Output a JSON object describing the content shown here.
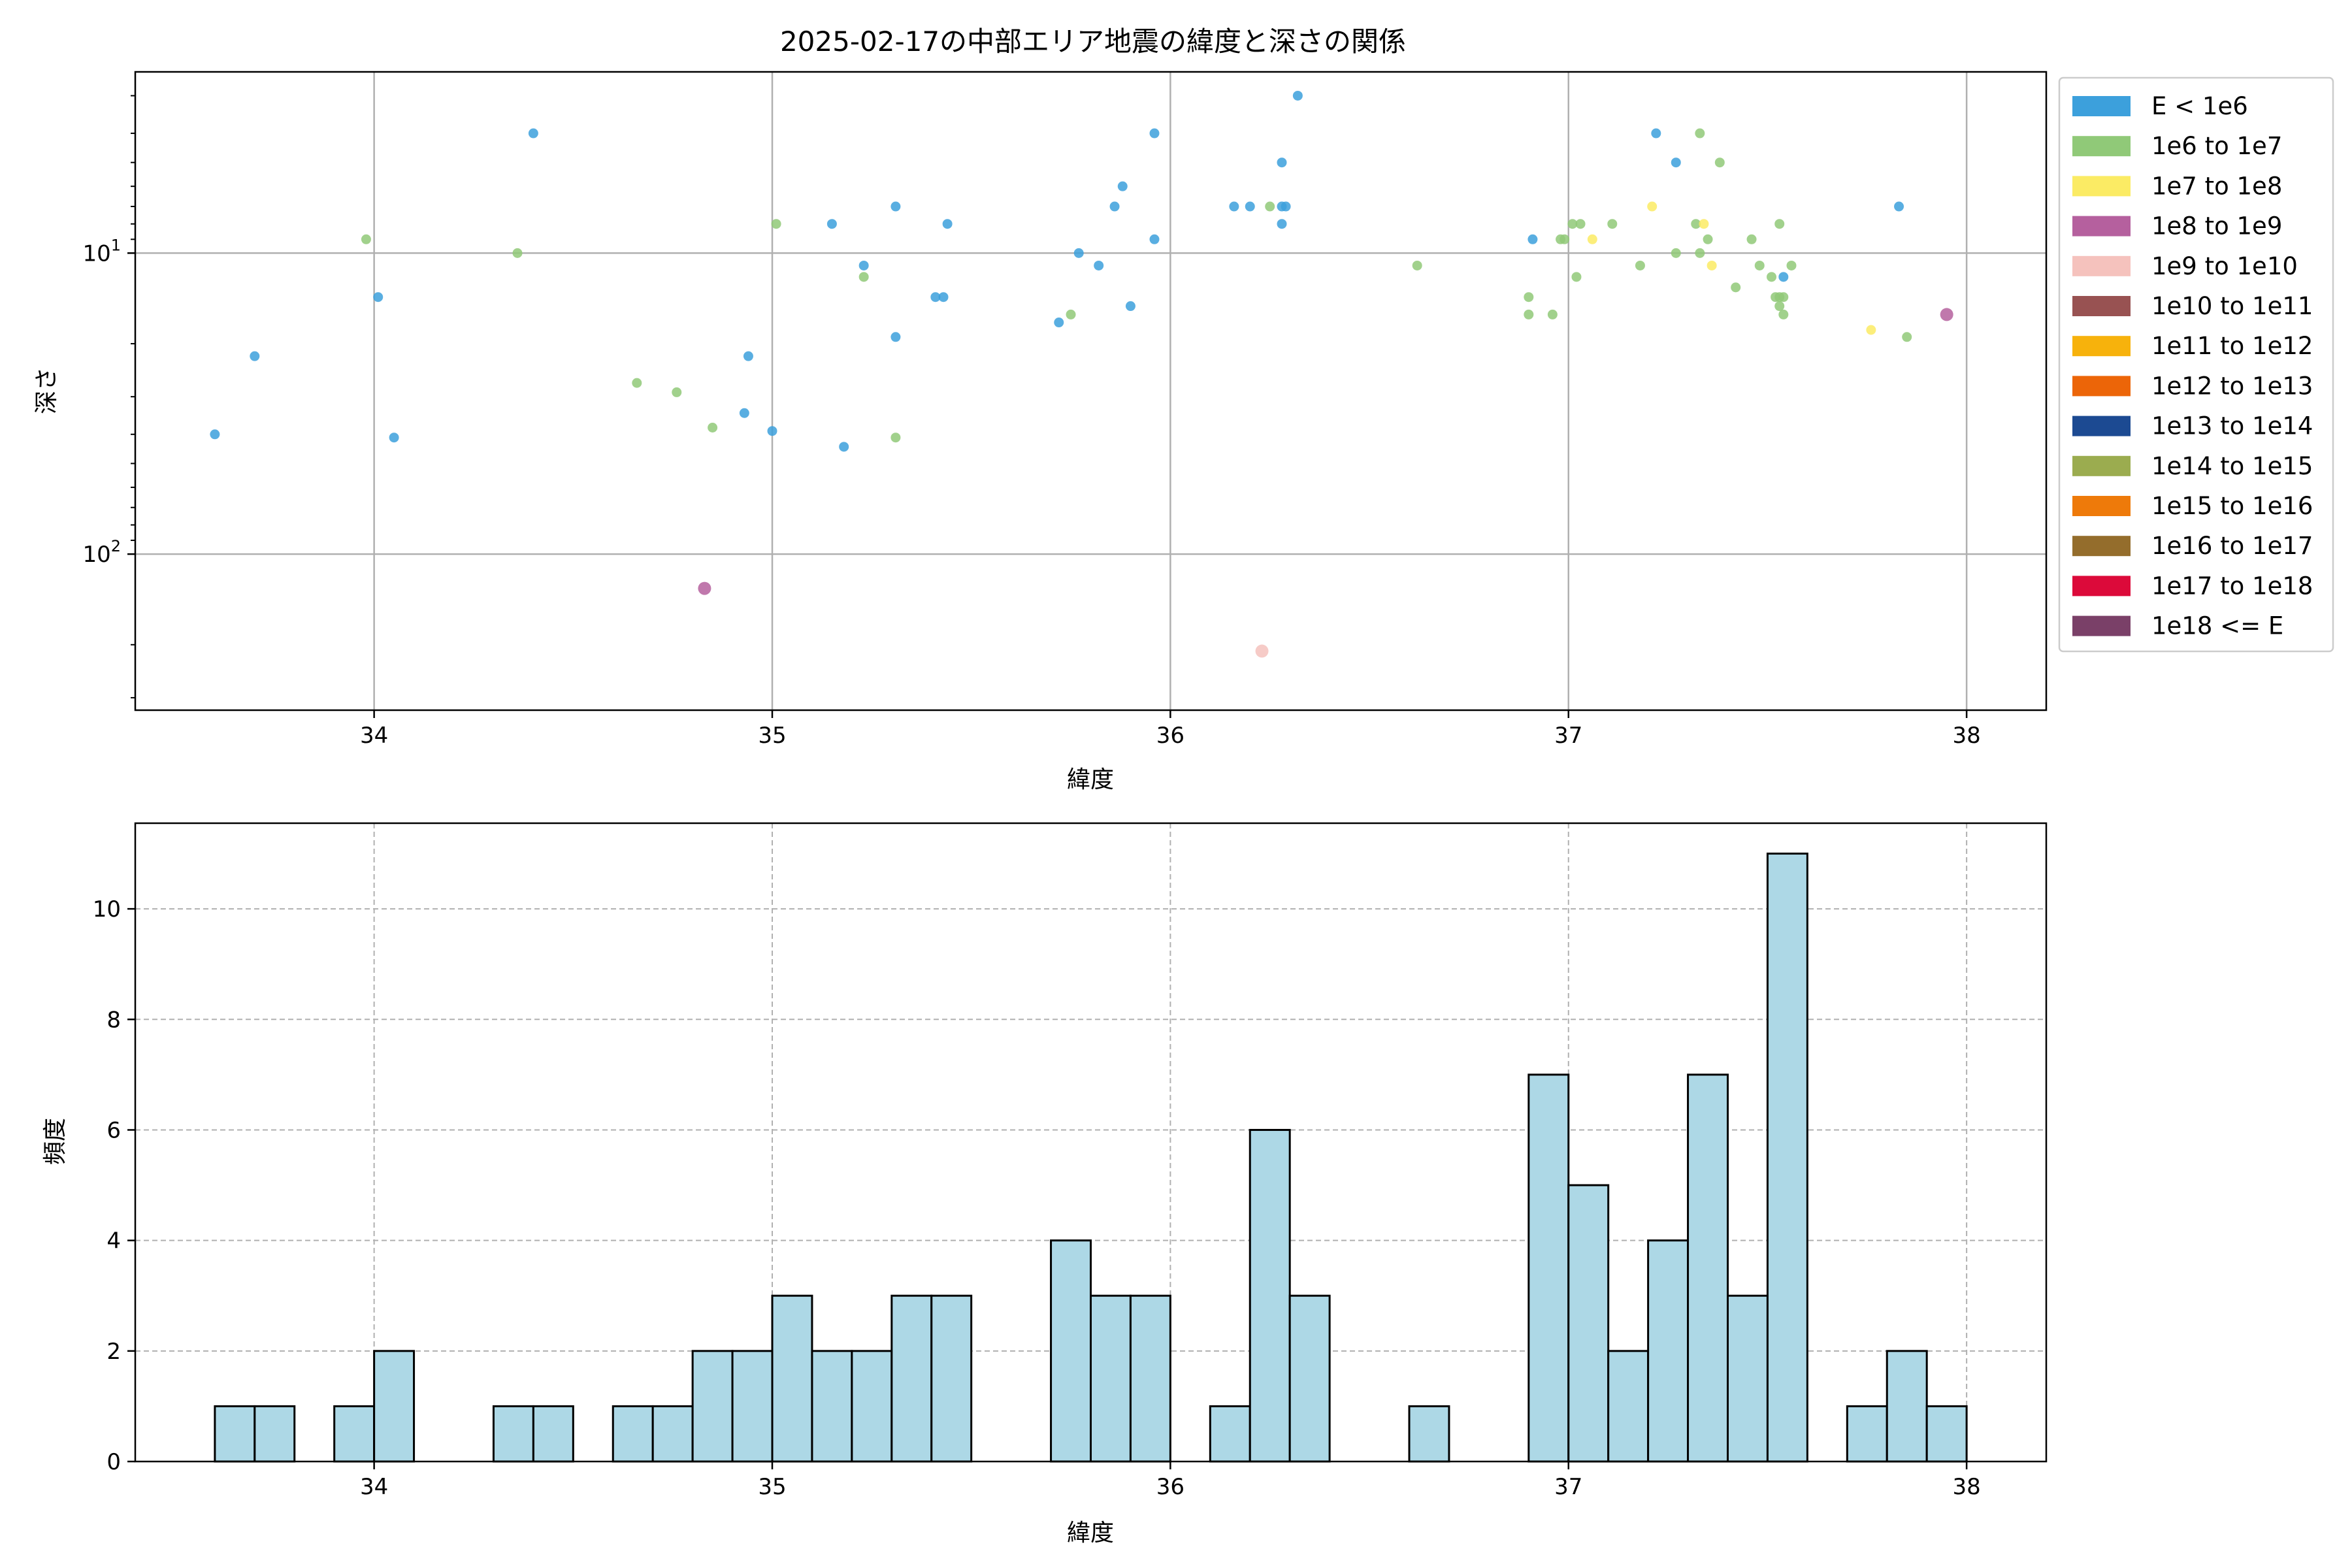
{
  "chart_data": [
    {
      "type": "scatter",
      "title": "2025-02-17の中部エリア地震の緯度と深さの関係",
      "xlabel": "緯度",
      "ylabel": "深さ",
      "xlim": [
        33.4,
        38.2
      ],
      "ylim": [
        330,
        2.5
      ],
      "y_scale": "log",
      "y_inverted": true,
      "xticks": [
        34,
        35,
        36,
        37,
        38
      ],
      "yticks": [
        {
          "value": 10,
          "base": "10",
          "exp": "1"
        },
        {
          "value": 100,
          "base": "10",
          "exp": "2"
        }
      ],
      "grid": true,
      "legend_position": "outside-right",
      "legend": [
        {
          "label": "E < 1e6",
          "color": "#3ca0dc"
        },
        {
          "label": "1e6 to 1e7",
          "color": "#90c978"
        },
        {
          "label": "1e7 to 1e8",
          "color": "#fbeb64"
        },
        {
          "label": "1e8 to 1e9",
          "color": "#b5609e"
        },
        {
          "label": "1e9 to 1e10",
          "color": "#f5c2bd"
        },
        {
          "label": "1e10 to 1e11",
          "color": "#985252"
        },
        {
          "label": "1e11 to 1e12",
          "color": "#f7b20c"
        },
        {
          "label": "1e12 to 1e13",
          "color": "#ec6508"
        },
        {
          "label": "1e13 to 1e14",
          "color": "#1c4a92"
        },
        {
          "label": "1e14 to 1e15",
          "color": "#9bac4f"
        },
        {
          "label": "1e15 to 1e16",
          "color": "#ee7a0a"
        },
        {
          "label": "1e16 to 1e17",
          "color": "#946d2c"
        },
        {
          "label": "1e17 to 1e18",
          "color": "#dc0a3a"
        },
        {
          "label": "1e18 <= E",
          "color": "#7a4068"
        }
      ],
      "series": [
        {
          "name": "E < 1e6",
          "points": [
            [
              33.6,
              40
            ],
            [
              33.7,
              22
            ],
            [
              34.01,
              14
            ],
            [
              34.05,
              41
            ],
            [
              34.4,
              4
            ],
            [
              34.94,
              22
            ],
            [
              34.93,
              34
            ],
            [
              35.0,
              39
            ],
            [
              35.15,
              8
            ],
            [
              35.18,
              44
            ],
            [
              35.23,
              11
            ],
            [
              35.31,
              7
            ],
            [
              35.31,
              19
            ],
            [
              35.41,
              14
            ],
            [
              35.43,
              14
            ],
            [
              35.44,
              8
            ],
            [
              35.72,
              17
            ],
            [
              35.77,
              10
            ],
            [
              35.82,
              11
            ],
            [
              35.86,
              7
            ],
            [
              35.88,
              6
            ],
            [
              35.9,
              15
            ],
            [
              35.96,
              4
            ],
            [
              35.96,
              9
            ],
            [
              36.16,
              7
            ],
            [
              36.2,
              7
            ],
            [
              36.28,
              5
            ],
            [
              36.28,
              7
            ],
            [
              36.28,
              8
            ],
            [
              36.29,
              7
            ],
            [
              36.32,
              3
            ],
            [
              36.91,
              9
            ],
            [
              37.22,
              4
            ],
            [
              37.27,
              5
            ],
            [
              37.54,
              12
            ],
            [
              37.83,
              7
            ]
          ]
        },
        {
          "name": "1e6 to 1e7",
          "points": [
            [
              33.98,
              9
            ],
            [
              34.36,
              10
            ],
            [
              34.66,
              27
            ],
            [
              34.76,
              29
            ],
            [
              34.85,
              38
            ],
            [
              35.01,
              8
            ],
            [
              35.23,
              12
            ],
            [
              35.31,
              41
            ],
            [
              35.75,
              16
            ],
            [
              36.25,
              7
            ],
            [
              36.62,
              11
            ],
            [
              36.9,
              14
            ],
            [
              36.9,
              16
            ],
            [
              36.96,
              16
            ],
            [
              36.98,
              9
            ],
            [
              36.99,
              9
            ],
            [
              37.01,
              8
            ],
            [
              37.02,
              12
            ],
            [
              37.03,
              8
            ],
            [
              37.11,
              8
            ],
            [
              37.18,
              11
            ],
            [
              37.27,
              10
            ],
            [
              37.32,
              8
            ],
            [
              37.33,
              4
            ],
            [
              37.33,
              10
            ],
            [
              37.35,
              9
            ],
            [
              37.38,
              5
            ],
            [
              37.42,
              13
            ],
            [
              37.46,
              9
            ],
            [
              37.48,
              11
            ],
            [
              37.51,
              12
            ],
            [
              37.52,
              14
            ],
            [
              37.53,
              14
            ],
            [
              37.53,
              8
            ],
            [
              37.53,
              15
            ],
            [
              37.54,
              14
            ],
            [
              37.54,
              16
            ],
            [
              37.56,
              11
            ],
            [
              37.85,
              19
            ]
          ]
        },
        {
          "name": "1e7 to 1e8",
          "points": [
            [
              37.06,
              9
            ],
            [
              37.21,
              7
            ],
            [
              37.34,
              8
            ],
            [
              37.36,
              11
            ],
            [
              37.76,
              18
            ]
          ]
        },
        {
          "name": "1e8 to 1e9",
          "points": [
            [
              34.83,
              130
            ],
            [
              37.95,
              16
            ]
          ]
        },
        {
          "name": "1e9 to 1e10",
          "points": [
            [
              36.23,
              210
            ]
          ]
        }
      ]
    },
    {
      "type": "bar",
      "subtype": "histogram",
      "xlabel": "緯度",
      "ylabel": "頻度",
      "xlim": [
        33.4,
        38.2
      ],
      "ylim": [
        0,
        11.55
      ],
      "xticks": [
        34,
        35,
        36,
        37,
        38
      ],
      "yticks": [
        0,
        2,
        4,
        6,
        8,
        10
      ],
      "grid": true,
      "bin_width": 0.1,
      "bins": [
        {
          "start": 33.6,
          "count": 1
        },
        {
          "start": 33.7,
          "count": 1
        },
        {
          "start": 33.9,
          "count": 1
        },
        {
          "start": 34.0,
          "count": 2
        },
        {
          "start": 34.3,
          "count": 1
        },
        {
          "start": 34.4,
          "count": 1
        },
        {
          "start": 34.6,
          "count": 1
        },
        {
          "start": 34.7,
          "count": 1
        },
        {
          "start": 34.8,
          "count": 2
        },
        {
          "start": 34.9,
          "count": 2
        },
        {
          "start": 35.0,
          "count": 3
        },
        {
          "start": 35.1,
          "count": 2
        },
        {
          "start": 35.2,
          "count": 2
        },
        {
          "start": 35.3,
          "count": 3
        },
        {
          "start": 35.4,
          "count": 3
        },
        {
          "start": 35.7,
          "count": 4
        },
        {
          "start": 35.8,
          "count": 3
        },
        {
          "start": 35.9,
          "count": 3
        },
        {
          "start": 36.1,
          "count": 1
        },
        {
          "start": 36.2,
          "count": 6
        },
        {
          "start": 36.3,
          "count": 3
        },
        {
          "start": 36.6,
          "count": 1
        },
        {
          "start": 36.9,
          "count": 7
        },
        {
          "start": 37.0,
          "count": 5
        },
        {
          "start": 37.1,
          "count": 2
        },
        {
          "start": 37.2,
          "count": 4
        },
        {
          "start": 37.3,
          "count": 7
        },
        {
          "start": 37.4,
          "count": 3
        },
        {
          "start": 37.5,
          "count": 11
        },
        {
          "start": 37.7,
          "count": 1
        },
        {
          "start": 37.8,
          "count": 2
        },
        {
          "start": 37.9,
          "count": 1
        }
      ],
      "bar_color": "#add8e6",
      "edge_color": "#000000"
    }
  ]
}
